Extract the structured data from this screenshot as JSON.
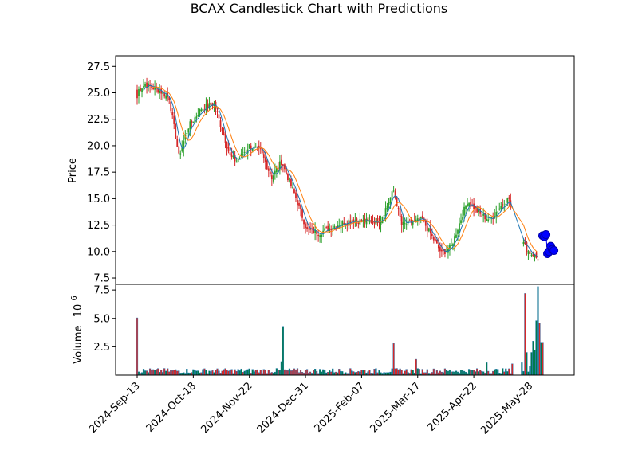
{
  "title": "BCAX Candlestick Chart with Predictions",
  "chart_data": {
    "type": "candlestick",
    "title": "BCAX Candlestick Chart with Predictions",
    "price_panel": {
      "ylabel": "Price",
      "ylim": [
        6.9,
        28.5
      ],
      "yticks": [
        "7.5",
        "10.0",
        "12.5",
        "15.0",
        "17.5",
        "20.0",
        "22.5",
        "25.0",
        "27.5"
      ],
      "moving_average_1_color": "#1f77b4",
      "moving_average_2_color": "#ff7f0e",
      "up_color": "#2ca02c",
      "down_color": "#d62728",
      "prediction_color": "#0000ff"
    },
    "volume_panel": {
      "ylabel": "Volume",
      "ylabel_multiplier": "10",
      "ylabel_exponent": "6",
      "ylim": [
        0,
        8.0
      ],
      "yticks": [
        "2.5",
        "5.0",
        "7.5"
      ],
      "up_color": "#007a4d",
      "down_color": "#d62728",
      "edge_color": "#1f77b4"
    },
    "x_ticks": [
      "2024-Sep-13",
      "2024-Oct-18",
      "2024-Nov-22",
      "2024-Dec-31",
      "2025-Feb-07",
      "2025-Mar-17",
      "2025-Apr-22",
      "2025-May-28"
    ],
    "ohlc_anchors": [
      {
        "day": 0,
        "close": 24.5
      },
      {
        "day": 1,
        "close": 25.3
      },
      {
        "day": 5,
        "close": 25.8
      },
      {
        "day": 14,
        "close": 25.2
      },
      {
        "day": 20,
        "close": 24.5
      },
      {
        "day": 26,
        "close": 19.0
      },
      {
        "day": 32,
        "close": 21.8
      },
      {
        "day": 40,
        "close": 23.5
      },
      {
        "day": 48,
        "close": 24.0
      },
      {
        "day": 58,
        "close": 19.0
      },
      {
        "day": 62,
        "close": 18.5
      },
      {
        "day": 70,
        "close": 20.0
      },
      {
        "day": 77,
        "close": 19.5
      },
      {
        "day": 84,
        "close": 17.0
      },
      {
        "day": 90,
        "close": 18.5
      },
      {
        "day": 98,
        "close": 15.5
      },
      {
        "day": 106,
        "close": 12.0
      },
      {
        "day": 114,
        "close": 11.8
      },
      {
        "day": 124,
        "close": 12.5
      },
      {
        "day": 134,
        "close": 13.0
      },
      {
        "day": 144,
        "close": 12.8
      },
      {
        "day": 152,
        "close": 13.0
      },
      {
        "day": 160,
        "close": 15.8
      },
      {
        "day": 165,
        "close": 12.5
      },
      {
        "day": 178,
        "close": 13.0
      },
      {
        "day": 190,
        "close": 9.8
      },
      {
        "day": 196,
        "close": 10.5
      },
      {
        "day": 206,
        "close": 14.8
      },
      {
        "day": 214,
        "close": 13.5
      },
      {
        "day": 220,
        "close": 13.0
      },
      {
        "day": 228,
        "close": 14.5
      },
      {
        "day": 232,
        "close": 15.0
      },
      {
        "day": 238,
        "close": 11.5
      },
      {
        "day": 244,
        "close": 10.0
      },
      {
        "day": 250,
        "close": 9.3
      }
    ],
    "volume_spikes_millions": [
      {
        "day": 0,
        "value": 5.05,
        "dir": "down"
      },
      {
        "day": 90,
        "value": 1.2,
        "dir": "up"
      },
      {
        "day": 91,
        "value": 4.3,
        "dir": "up"
      },
      {
        "day": 160,
        "value": 2.8,
        "dir": "down"
      },
      {
        "day": 174,
        "value": 1.4,
        "dir": "down"
      },
      {
        "day": 218,
        "value": 1.1,
        "dir": "up"
      },
      {
        "day": 234,
        "value": 1.0,
        "dir": "down"
      },
      {
        "day": 240,
        "value": 1.1,
        "dir": "up"
      },
      {
        "day": 242,
        "value": 7.2,
        "dir": "down"
      },
      {
        "day": 243,
        "value": 2.0,
        "dir": "up"
      },
      {
        "day": 245,
        "value": 0.8,
        "dir": "up"
      },
      {
        "day": 246,
        "value": 2.0,
        "dir": "up"
      },
      {
        "day": 247,
        "value": 3.0,
        "dir": "up"
      },
      {
        "day": 248,
        "value": 2.2,
        "dir": "up"
      },
      {
        "day": 249,
        "value": 4.8,
        "dir": "up"
      },
      {
        "day": 250,
        "value": 7.8,
        "dir": "up"
      },
      {
        "day": 251,
        "value": 4.6,
        "dir": "down"
      },
      {
        "day": 252,
        "value": 2.9,
        "dir": "up"
      },
      {
        "day": 253,
        "value": 2.9,
        "dir": "down"
      }
    ],
    "predictions": [
      {
        "day": 253,
        "value": 11.5
      },
      {
        "day": 254,
        "value": 11.4
      },
      {
        "day": 255,
        "value": 11.6
      },
      {
        "day": 256,
        "value": 9.8
      },
      {
        "day": 257,
        "value": 10.0
      },
      {
        "day": 258,
        "value": 10.5
      },
      {
        "day": 259,
        "value": 10.2
      },
      {
        "day": 260,
        "value": 10.1
      }
    ]
  }
}
